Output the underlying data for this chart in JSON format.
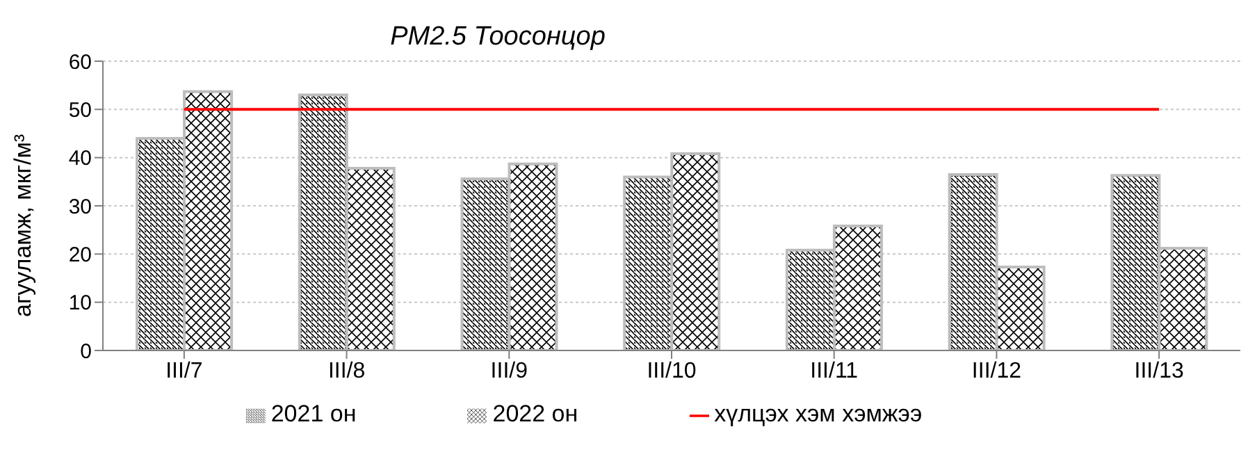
{
  "chart_data": {
    "type": "bar",
    "title": "PM2.5 Тоосонцор",
    "ylabel": "агууламж, мкг/м³",
    "categories": [
      "III/7",
      "III/8",
      "III/9",
      "III/10",
      "III/11",
      "III/12",
      "III/13"
    ],
    "series": [
      {
        "name": "2021 он",
        "color": "#bdbdbd",
        "values": [
          44,
          53,
          35.6,
          36,
          20.8,
          36.5,
          36.3
        ]
      },
      {
        "name": "2022 он",
        "color": "#bdbdbd",
        "values": [
          53.7,
          37.8,
          38.7,
          40.8,
          25.8,
          17.3,
          21.2
        ]
      },
      {
        "name": "хүлцэх хэм хэмжээ",
        "type": "line",
        "color": "#ff0000",
        "values": [
          50,
          50,
          50,
          50,
          50,
          50,
          50
        ]
      }
    ],
    "ylim": [
      0,
      60
    ],
    "yticks": [
      0,
      10,
      20,
      30,
      40,
      50,
      60
    ],
    "grid": "y",
    "legend": "bottom",
    "marker": "none"
  }
}
